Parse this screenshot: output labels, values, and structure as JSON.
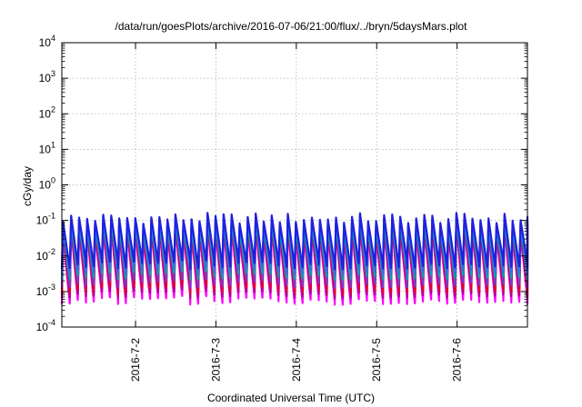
{
  "chart_data": {
    "type": "line",
    "title": "/data/run/goesPlots/archive/2016-07-06/21:00/flux/../bryn/5daysMars.plot",
    "xlabel": "Coordinated Universal Time (UTC)",
    "ylabel": "cGy/day",
    "x_range": [
      "2016-07-01 02:00",
      "2016-07-06 21:00"
    ],
    "x_ticks": [
      "2016-7-2",
      "2016-7-3",
      "2016-7-4",
      "2016-7-5",
      "2016-7-6"
    ],
    "y_scale": "log",
    "ylim": [
      0.0001,
      10000
    ],
    "y_ticks": [
      {
        "base": "10",
        "exp": "-4"
      },
      {
        "base": "10",
        "exp": "-3"
      },
      {
        "base": "10",
        "exp": "-2"
      },
      {
        "base": "10",
        "exp": "-1"
      },
      {
        "base": "10",
        "exp": "0"
      },
      {
        "base": "10",
        "exp": "1"
      },
      {
        "base": "10",
        "exp": "2"
      },
      {
        "base": "10",
        "exp": "3"
      },
      {
        "base": "10",
        "exp": "4"
      }
    ],
    "grid": true,
    "cycles_per_day": 10,
    "cycle_peak_range": [
      0.03,
      0.1
    ],
    "series": [
      {
        "color": "#ff00ff",
        "min": 0.0006,
        "peak": 0.04
      },
      {
        "color": "#b00090",
        "min": 0.0009,
        "peak": 0.05
      },
      {
        "color": "#e0002a",
        "min": 0.0012,
        "peak": 0.06
      },
      {
        "color": "#7a3cc8",
        "min": 0.0018,
        "peak": 0.07
      },
      {
        "color": "#00a8a8",
        "min": 0.003,
        "peak": 0.06
      },
      {
        "color": "#2a7ad8",
        "min": 0.004,
        "peak": 0.08
      },
      {
        "color": "#2020e0",
        "min": 0.006,
        "peak": 0.09
      }
    ]
  }
}
